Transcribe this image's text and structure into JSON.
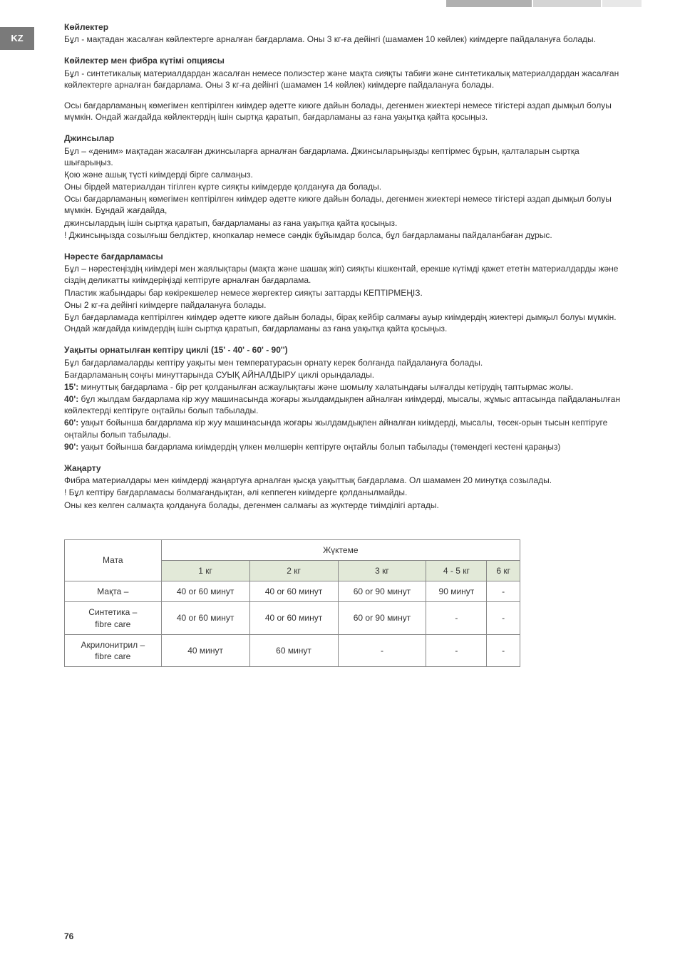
{
  "lang_tab": "KZ",
  "sections": {
    "s1": {
      "title": "Көйлектер",
      "p1": "Бұл - мақтадан жасалған көйлектерге арналған бағдарлама. Оны 3 кг-ға дейінгі (шамамен 10 көйлек) киімдерге пайдалануға болады."
    },
    "s2": {
      "title": "Көйлектер мен фибра күтімі опциясы",
      "p1": "Бұл - синтетикалық материалдардан жасалған немесе полиэстер және мақта сияқты табиғи және синтетикалық материалдардан жасалған көйлектерге арналған бағдарлама. Оны 3 кг-ға дейінгі (шамамен 14 көйлек) киімдерге пайдалануға болады.",
      "p2": "Осы бағдарламаның көмегімен кептірілген киімдер әдетте киюге дайын болады, дегенмен жиектері немесе тігістері аздап дымқыл болуы мүмкін. Ондай жағдайда көйлектердің ішін сыртқа қаратып, бағдарламаны аз ғана уақытқа қайта қосыңыз."
    },
    "s3": {
      "title": "Джинсылар",
      "p1": "Бұл – «деним» мақтадан жасалған джинсыларға арналған бағдарлама. Джинсыларыңызды кептірмес бұрын, қалталарын сыртқа шығарыңыз.",
      "p2": "Қою және ашық түсті киімдерді бірге салмаңыз.",
      "p3": "Оны бірдей материалдан тігілген күрте сияқты киімдерде қолдануға да болады.",
      "p4": "Осы бағдарламаның көмегімен кептірілген киімдер әдетте киюге дайын болады, дегенмен жиектері немесе тігістері аздап дымқыл болуы мүмкін. Бұндай жағдайда,",
      "p5": "джинсылардың ішін сыртқа қаратып, бағдарламаны аз ғана уақытқа қайта қосыңыз.",
      "p6": "! Джинсыңызда созылғыш белдіктер, кнопкалар немесе сәндік бұйымдар болса, бұл бағдарламаны пайдаланбаған дұрыс."
    },
    "s4": {
      "title": "Нәресте бағдарламасы",
      "p1": "Бұл – нәрестеңіздің киімдері мен жаялықтары (мақта және шашақ жіп) сияқты кішкентай, ерекше күтімді қажет ететін материалдарды және сіздің деликатты киімдеріңізді кептіруге арналған бағдарлама.",
      "p2": "Пластик жабындары бар көкірекшелер немесе жөргектер сияқты заттарды КЕПТІРМЕҢІЗ.",
      "p3": "Оны 2 кг-ға дейінгі киімдерге пайдалануға болады.",
      "p4": "Бұл бағдарламада кептірілген киімдер әдетте киюге дайын болады, бірақ кейбір салмағы ауыр киімдердің жиектері дымқыл болуы мүмкін. Ондай жағдайда киімдердің ішін сыртқа қаратып, бағдарламаны аз ғана уақытқа қайта қосыңыз."
    },
    "s5": {
      "title": "Уақыты орнатылған кептіру циклі (15' - 40' - 60' - 90'')",
      "p1": "Бұл бағдарламаларды кептіру уақыты мен температурасын орнату керек болғанда пайдалануға болады.",
      "p2": "Бағдарламаның соңғы минуттарында СУЫҚ АЙНАЛДЫРУ циклі орындалады.",
      "p3_label": "15':",
      "p3": " минуттық бағдарлама - бір рет қолданылған асжаулықтағы және шомылу халатындағы ылғалды кетірудің таптырмас жолы.",
      "p4_label": "40':",
      "p4": " бұл жылдам бағдарлама кір жуу машинасында жоғары жылдамдықпен айналған киімдерді, мысалы, жұмыс аптасында пайдаланылған көйлектерді кептіруге оңтайлы болып табылады.",
      "p5_label": "60':",
      "p5": " уақыт бойынша бағдарлама кір жуу машинасында жоғары жылдамдықпен айналған киімдерді, мысалы, төсек-орын тысын кептіруге оңтайлы болып табылады.",
      "p6_label": "90':",
      "p6": " уақыт бойынша бағдарлама киімдердің үлкен мөлшерін кептіруге оңтайлы болып табылады (төмендегі кестені қараңыз)"
    },
    "s6": {
      "title": "Жаңарту",
      "p1": "Фибра материалдары мен киімдерді жаңартуға арналған қысқа уақыттық бағдарлама. Ол шамамен 20 минутқа созылады.",
      "p2": "! Бұл кептіру бағдарламасы болмағандықтан, әлі кеппеген киімдерге қолданылмайды.",
      "p3": "Оны кез келген салмақта қолдануға болады, дегенмен салмағы аз жүктерде тиімділігі артады."
    }
  },
  "table": {
    "header_main": "Мата",
    "header_group": "Жүктеме",
    "cols": [
      "1 кг",
      "2 кг",
      "3 кг",
      "4 - 5 кг",
      "6 кг"
    ],
    "rows": [
      {
        "name": "Мақта  –",
        "cells": [
          "40 or 60 минут",
          "40 or 60 минут",
          "60 or 90 минут",
          "90 минут",
          "-"
        ]
      },
      {
        "name": "Синтетика  –\nfibre care",
        "cells": [
          "40 or 60 минут",
          "40 or 60 минут",
          "60 or 90 минут",
          "-",
          "-"
        ]
      },
      {
        "name": "Акрилонитрил  –\nfibre care",
        "cells": [
          "40 минут",
          "60 минут",
          "-",
          "-",
          "-"
        ]
      }
    ]
  },
  "page_number": "76"
}
